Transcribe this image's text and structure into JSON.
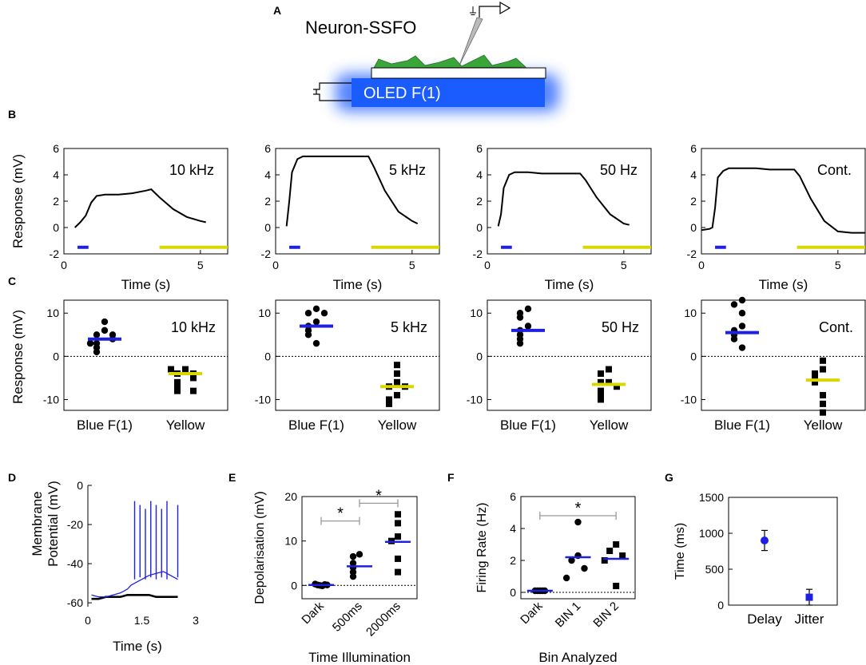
{
  "figure": {
    "panel_labels": [
      "A",
      "B",
      "C",
      "D",
      "E",
      "F",
      "G"
    ],
    "colors": {
      "blue": "#1f1fe0",
      "yellow": "#d8d800",
      "green": "#3aa63a",
      "oled": "#1a5cff",
      "black": "#000000"
    }
  },
  "panel_a": {
    "title": "Neuron-SSFO",
    "device_label": "OLED F(1)"
  },
  "chart_data": [
    {
      "id": "B",
      "type": "line",
      "ylabel": "Response (mV)",
      "xlabel": "Time (s)",
      "ylim": [
        -2,
        6
      ],
      "yticks": [
        -2,
        0,
        2,
        4,
        6
      ],
      "xlim": [
        0,
        6
      ],
      "xticks": [
        0,
        5
      ],
      "stim_bars": [
        {
          "name": "Blue",
          "start": 0.5,
          "end": 0.9,
          "y": -1.5
        },
        {
          "name": "Yellow",
          "start": 3.5,
          "end": 6.0,
          "y": -1.5
        }
      ],
      "series": [
        {
          "name": "10 kHz",
          "x": [
            0.4,
            0.6,
            0.8,
            1.0,
            1.2,
            1.5,
            2.0,
            2.5,
            3.0,
            3.2,
            3.5,
            4.0,
            4.5,
            5.0,
            5.2
          ],
          "y": [
            0.0,
            0.4,
            0.9,
            1.9,
            2.4,
            2.5,
            2.5,
            2.6,
            2.8,
            2.9,
            2.3,
            1.4,
            0.8,
            0.5,
            0.4
          ]
        },
        {
          "name": "5 kHz",
          "x": [
            0.4,
            0.5,
            0.6,
            0.8,
            1.0,
            1.5,
            2.0,
            2.5,
            3.0,
            3.4,
            3.6,
            4.0,
            4.5,
            5.0,
            5.2
          ],
          "y": [
            0.1,
            2.0,
            4.2,
            5.2,
            5.4,
            5.4,
            5.4,
            5.4,
            5.4,
            5.4,
            4.6,
            2.8,
            1.2,
            0.5,
            0.3
          ]
        },
        {
          "name": "50 Hz",
          "x": [
            0.4,
            0.5,
            0.6,
            0.8,
            1.0,
            1.5,
            2.0,
            2.5,
            3.0,
            3.4,
            3.6,
            4.0,
            4.5,
            5.0,
            5.2
          ],
          "y": [
            0.1,
            1.0,
            3.0,
            4.0,
            4.2,
            4.2,
            4.1,
            4.1,
            4.1,
            4.1,
            3.6,
            2.3,
            1.0,
            0.3,
            0.2
          ]
        },
        {
          "name": "Cont.",
          "x": [
            0,
            0.3,
            0.4,
            0.5,
            0.6,
            0.8,
            1.0,
            1.5,
            2.0,
            2.5,
            3.0,
            3.4,
            3.6,
            4.0,
            4.5,
            5.0,
            5.5,
            6.0
          ],
          "y": [
            -0.2,
            -0.1,
            0.0,
            1.5,
            3.8,
            4.3,
            4.5,
            4.5,
            4.5,
            4.4,
            4.4,
            4.4,
            3.9,
            2.2,
            0.5,
            -0.3,
            -0.4,
            -0.4
          ]
        }
      ]
    },
    {
      "id": "C",
      "type": "scatter",
      "ylabel": "Response (mV)",
      "ylim": [
        -12.5,
        13
      ],
      "yticks": [
        -10,
        0,
        10
      ],
      "categories": [
        "Blue F(1)",
        "Yellow"
      ],
      "panels": [
        {
          "name": "10 kHz",
          "blue_points": [
            8,
            6,
            5,
            5,
            4,
            3,
            2,
            3,
            1
          ],
          "blue_mean": 4,
          "yellow_points": [
            -3,
            -4,
            -4,
            -3,
            -5,
            -6,
            -7,
            -8,
            -8
          ],
          "yellow_mean": -4
        },
        {
          "name": "5 kHz",
          "blue_points": [
            11,
            10,
            10,
            8,
            7,
            6,
            5,
            3
          ],
          "blue_mean": 7,
          "yellow_points": [
            -2,
            -4,
            -6,
            -7,
            -7,
            -9,
            -10,
            -11
          ],
          "yellow_mean": -7
        },
        {
          "name": "50 Hz",
          "blue_points": [
            11,
            10,
            9,
            7,
            6,
            5,
            4,
            3
          ],
          "blue_mean": 6,
          "yellow_points": [
            -3,
            -4,
            -6,
            -6,
            -7,
            -8,
            -9,
            -10
          ],
          "yellow_mean": -6.5
        },
        {
          "name": "Cont.",
          "blue_points": [
            13,
            12,
            10,
            7,
            6,
            5,
            4,
            2
          ],
          "blue_mean": 5.5,
          "yellow_points": [
            -1,
            -3,
            -4,
            -5,
            -6,
            -9,
            -11,
            -13
          ],
          "yellow_mean": -5.5
        }
      ]
    },
    {
      "id": "D",
      "type": "line",
      "ylabel_lines": [
        "Membrane",
        "Potential (mV)"
      ],
      "xlabel": "Time (s)",
      "xlim": [
        0,
        3
      ],
      "xticks": [
        0,
        1.5,
        3
      ],
      "ylim": [
        -62,
        0
      ],
      "yticks": [
        0,
        -20,
        -40,
        -60
      ],
      "spikes_s": [
        1.3,
        1.45,
        1.6,
        1.75,
        1.9,
        2.05,
        2.2,
        2.5
      ],
      "series": [
        {
          "name": "blue",
          "x": [
            0.1,
            0.3,
            0.5,
            0.7,
            0.9,
            1.0,
            1.1,
            1.2,
            1.3,
            1.5,
            1.7,
            1.9,
            2.1,
            2.3,
            2.5
          ],
          "y": [
            -56,
            -57,
            -57,
            -56,
            -55,
            -54,
            -53,
            -51,
            -50,
            -48,
            -46,
            -45,
            -44,
            -46,
            -48
          ]
        },
        {
          "name": "black",
          "x": [
            0.1,
            0.3,
            0.5,
            0.7,
            0.9,
            1.1,
            1.3,
            1.5,
            1.7,
            1.9,
            2.1,
            2.3,
            2.5
          ],
          "y": [
            -58,
            -58,
            -57,
            -57,
            -57,
            -56,
            -56,
            -56,
            -56,
            -57,
            -57,
            -57,
            -57
          ]
        }
      ]
    },
    {
      "id": "E",
      "type": "scatter",
      "ylabel": "Depolarisation (mV)",
      "xlabel": "Time Illumination",
      "ylim": [
        -3,
        20
      ],
      "yticks": [
        0,
        10,
        20
      ],
      "categories": [
        "Dark",
        "500ms",
        "2000ms"
      ],
      "points": [
        [
          0.3,
          0.1,
          0.0,
          -0.1,
          0.2,
          0.1
        ],
        [
          7,
          6.5,
          5,
          4,
          3,
          2
        ],
        [
          16,
          14,
          11,
          10,
          6,
          3
        ]
      ],
      "means": [
        0.1,
        4.3,
        9.8
      ],
      "significance": [
        {
          "between": [
            0,
            1
          ],
          "y": 14.5,
          "label": "*"
        },
        {
          "between": [
            1,
            2
          ],
          "y": 18.5,
          "label": "*"
        }
      ]
    },
    {
      "id": "F",
      "type": "scatter",
      "ylabel": "Firing Rate (Hz)",
      "xlabel": "Bin Analyzed",
      "ylim": [
        -0.4,
        6
      ],
      "yticks": [
        0,
        2,
        4,
        6
      ],
      "categories": [
        "Dark",
        "BIN 1",
        "BIN 2"
      ],
      "points": [
        [
          0.1,
          0.1,
          0.1,
          0.1,
          0.1
        ],
        [
          4.4,
          2.3,
          2.0,
          1.5,
          0.9
        ],
        [
          3.0,
          2.6,
          2.3,
          2.0,
          0.4
        ]
      ],
      "means": [
        0.1,
        2.2,
        2.1
      ],
      "significance": [
        {
          "between": [
            0,
            2
          ],
          "y": 4.8,
          "label": "*"
        }
      ]
    },
    {
      "id": "G",
      "type": "scatter",
      "ylabel": "Time (ms)",
      "ylim": [
        0,
        1500
      ],
      "yticks": [
        0,
        500,
        1000,
        1500
      ],
      "categories": [
        "Delay",
        "Jitter"
      ],
      "values": [
        900,
        110
      ],
      "errors": [
        140,
        110
      ],
      "markers": [
        "circle",
        "square"
      ]
    }
  ]
}
